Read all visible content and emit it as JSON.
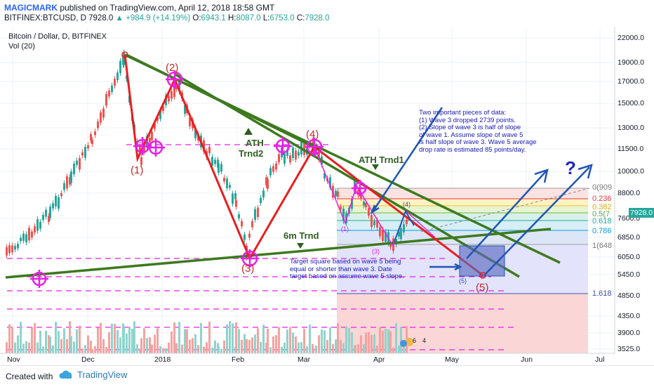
{
  "header": {
    "author": "MAGICMARK",
    "published": " published on TradingView.com, April 12, 2018 18:58 GMT",
    "symbol": "BITFINEX:BTCUSD, D",
    "last": "7928.0",
    "change": "+984.9 (+14.19%)",
    "open_label": "O:",
    "open": "6943.1",
    "high_label": "H:",
    "high": "8087.0",
    "low_label": "L:",
    "low": "6753.0",
    "close_label": "C:",
    "close": "7928.0"
  },
  "chart": {
    "title": "Bitcoin / Dollar, D, BITFINEX",
    "volume_label": "Vol (20)",
    "price_tag": "7928.0",
    "y_ticks": [
      "22000.0",
      "19000.0",
      "17000.0",
      "15000.0",
      "13000.0",
      "11500.0",
      "10000.0",
      "8800.0",
      "7600.0",
      "6850.0",
      "6050.0",
      "5450.0",
      "4850.0",
      "4350.0",
      "3900.0",
      "3525.0"
    ],
    "x_ticks": [
      "Nov",
      "Dec",
      "2018",
      "Feb",
      "Mar",
      "Apr",
      "May",
      "Jun",
      "Jul"
    ],
    "fib_levels": [
      "0(909",
      "0.236",
      "0.382",
      "0.5(7",
      "0.618",
      "0.786",
      "1(648",
      "1.618"
    ],
    "wave_labels": [
      "(1)",
      "(2)",
      "(3)",
      "(4)",
      "(5)"
    ],
    "small_labels": [
      "(1)",
      "(3)",
      "(4)",
      "(5)"
    ],
    "trend_labels": {
      "ath2_line1": "ATH",
      "ath2_line2": "Trnd2",
      "ath1": "ATH Trnd1",
      "sixm": "6m Trnd"
    },
    "note_top": "Two important pieces of data:\n(1) Wave 3 dropped 2739 points.\n(2) Slope of wave 3 is half of slope\nof wave 1. Assume slope of wave 5\nis half slope of wave 3. Wave 5 average\ndrop rate is estimated 85 points/day.",
    "note_bottom": "Target square based on wave 5 being\nequal or shorter than wave 3. Date\ntarget based on assume wave 5 slope.",
    "question": "?",
    "mini_badges": [
      "6",
      "4"
    ],
    "colors": {
      "bull": "#26a69a",
      "bear": "#ef5350",
      "wave": "#e91e1e",
      "trend": "#3d7a1f",
      "magenta": "#e91ee8",
      "blue": "#1f56b4"
    }
  },
  "footer": {
    "created": "Created with",
    "brand": "TradingView"
  }
}
